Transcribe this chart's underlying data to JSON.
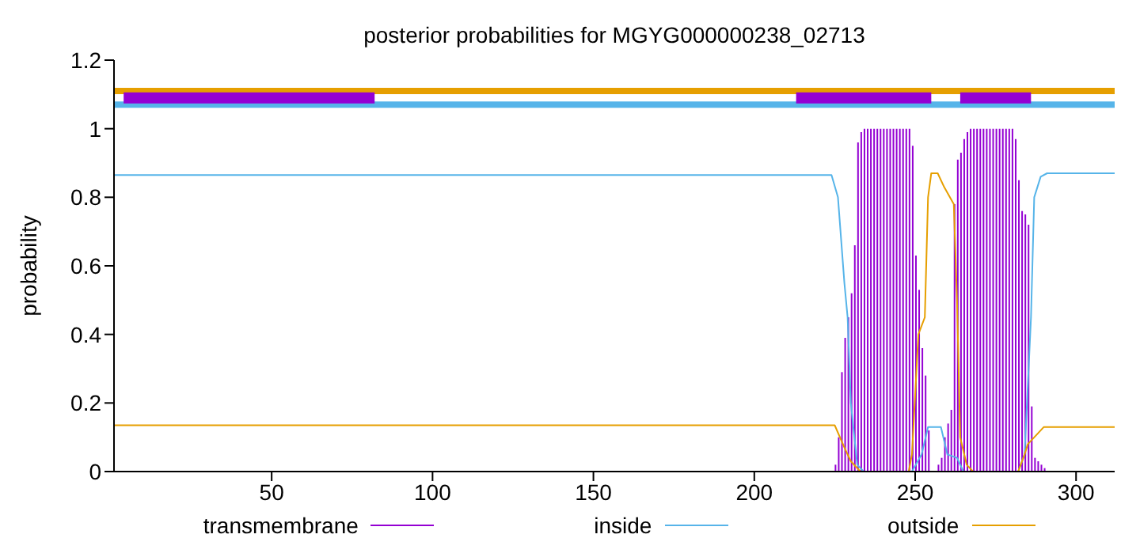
{
  "chart_data": {
    "type": "bar",
    "title": "posterior probabilities for MGYG000000238_02713",
    "ylabel": "probability",
    "xlim": [
      1,
      312
    ],
    "xticks": [
      50,
      100,
      150,
      200,
      250,
      300
    ],
    "ylim": [
      0,
      1.2
    ],
    "yticks": [
      0,
      0.2,
      0.4,
      0.6,
      0.8,
      1,
      1.2
    ],
    "grid": false,
    "legend": "bottom",
    "marker": "none",
    "line_style": "solid",
    "x": [
      225,
      226,
      227,
      228,
      229,
      230,
      231,
      232,
      233,
      234,
      235,
      236,
      237,
      238,
      239,
      240,
      241,
      242,
      243,
      244,
      245,
      246,
      247,
      248,
      249,
      250,
      251,
      252,
      253,
      254,
      255,
      256,
      257,
      258,
      259,
      260,
      261,
      262,
      263,
      264,
      265,
      266,
      267,
      268,
      269,
      270,
      271,
      272,
      273,
      274,
      275,
      276,
      277,
      278,
      279,
      280,
      281,
      282,
      283,
      284,
      285,
      286,
      287,
      288,
      289,
      290
    ],
    "series": [
      {
        "name": "transmembrane",
        "color": "#9400d3",
        "values": [
          0.02,
          0.1,
          0.29,
          0.39,
          0.45,
          0.52,
          0.66,
          0.96,
          0.99,
          1,
          1,
          1,
          1,
          1,
          1,
          1,
          1,
          1,
          1,
          1,
          1,
          1,
          1,
          1,
          0.95,
          0.63,
          0.53,
          0.36,
          0.28,
          0.12,
          0,
          0,
          0.02,
          0.04,
          0.1,
          0.14,
          0.18,
          0.78,
          0.91,
          0.93,
          0.97,
          0.99,
          1,
          1,
          1,
          1,
          1,
          1,
          1,
          1,
          1,
          1,
          1,
          1,
          1,
          1,
          0.97,
          0.85,
          0.76,
          0.75,
          0.72,
          0.19,
          0.04,
          0.03,
          0.02,
          0.01
        ]
      },
      {
        "name": "inside",
        "type": "line",
        "color": "#56b4e9",
        "x": [
          1,
          224,
          226,
          228,
          229,
          230,
          232,
          234,
          249,
          252,
          254,
          258,
          260,
          263,
          265,
          282,
          284,
          286,
          287,
          289,
          291,
          312
        ],
        "values": [
          0.865,
          0.865,
          0.8,
          0.55,
          0.45,
          0.2,
          0.02,
          0,
          0,
          0.05,
          0.13,
          0.13,
          0.05,
          0.04,
          0,
          0,
          0.05,
          0.45,
          0.8,
          0.86,
          0.87,
          0.87
        ]
      },
      {
        "name": "outside",
        "type": "line",
        "color": "#e69f00",
        "x": [
          1,
          225,
          228,
          230,
          233,
          248,
          249,
          251,
          253,
          254,
          255,
          257,
          259,
          262,
          263,
          264,
          266,
          268,
          282,
          284,
          285,
          288,
          290,
          312
        ],
        "values": [
          0.135,
          0.135,
          0.07,
          0.03,
          0,
          0,
          0.05,
          0.4,
          0.45,
          0.8,
          0.87,
          0.87,
          0.83,
          0.78,
          0.5,
          0.1,
          0.02,
          0,
          0,
          0.05,
          0.08,
          0.11,
          0.13,
          0.13
        ]
      },
      {
        "type": "line",
        "color": "#e69f00",
        "x": [
          1,
          312
        ],
        "values": [
          1.11,
          1.11
        ]
      },
      {
        "type": "line",
        "color": "#56b4e9",
        "x": [
          1,
          312
        ],
        "values": [
          1.07,
          1.07
        ]
      },
      {
        "type": "line",
        "color": "#9400d3",
        "x": [
          4,
          82,
          83,
          213,
          255,
          256,
          264,
          286
        ],
        "values": [
          1.09,
          1.09,
          null,
          1.09,
          1.09,
          null,
          1.09,
          1.09
        ]
      }
    ]
  }
}
